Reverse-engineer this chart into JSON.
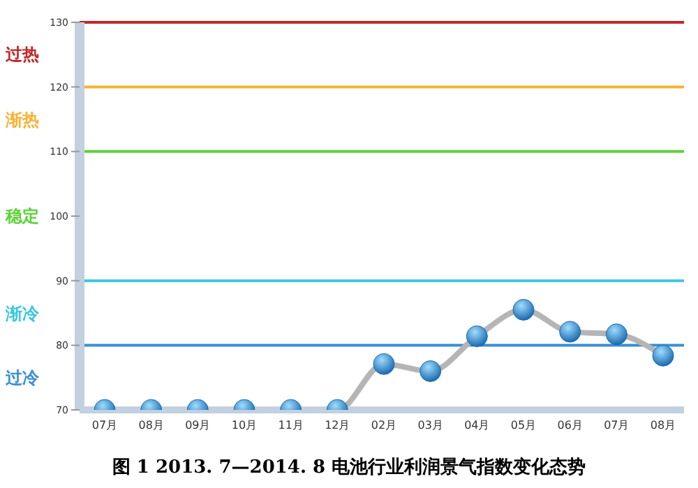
{
  "chart_data": {
    "type": "line",
    "title": "图 1 2013. 7—2014. 8 电池行业利润景气指数变化态势",
    "categories": [
      "07月",
      "08月",
      "09月",
      "10月",
      "11月",
      "12月",
      "02月",
      "03月",
      "04月",
      "05月",
      "06月",
      "07月",
      "08月"
    ],
    "series": [
      {
        "color": "#1a6bb0",
        "values": [
          70,
          70,
          70,
          70,
          70,
          70,
          77.1,
          76,
          81.4,
          85.5,
          82.1,
          81.7,
          78.4
        ]
      }
    ],
    "ylim": [
      70,
      130
    ],
    "yticks": [
      70,
      80,
      90,
      100,
      110,
      120,
      130
    ],
    "marker": "circle",
    "line_style": "solid",
    "ref_lines": [
      {
        "axis": "y",
        "value": 130,
        "color": "#c0292b"
      },
      {
        "axis": "y",
        "value": 120,
        "color": "#f5b335"
      },
      {
        "axis": "y",
        "value": 110,
        "color": "#5ed13b"
      },
      {
        "axis": "y",
        "value": 90,
        "color": "#3cc6df"
      },
      {
        "axis": "y",
        "value": 80,
        "color": "#3a8fd9"
      }
    ],
    "annotations": [
      "过热",
      "渐热",
      "稳定",
      "渐冷",
      "过冷"
    ]
  }
}
